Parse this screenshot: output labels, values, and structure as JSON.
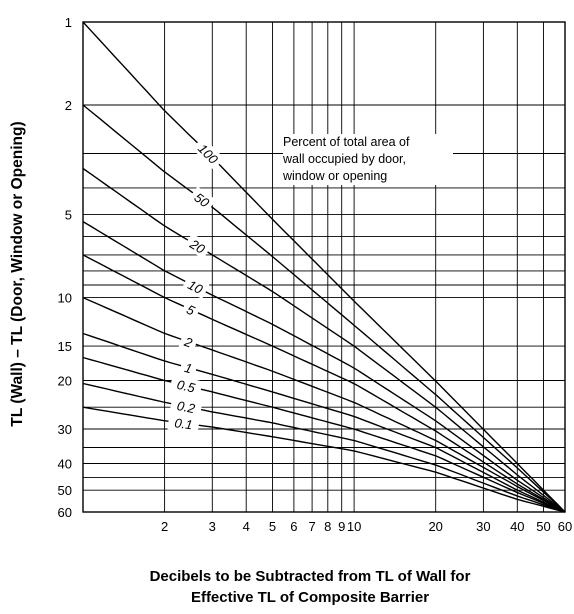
{
  "chart_data": {
    "type": "line",
    "x_scale": "log",
    "y_scale": "log",
    "y_inverted": true,
    "xlim": [
      1,
      60
    ],
    "ylim": [
      1,
      60
    ],
    "grid": true,
    "xlabel_lines": [
      "Decibels to be Subtracted from TL of Wall for",
      "Effective TL of Composite Barrier"
    ],
    "ylabel": "TL (Wall) – TL (Door, Window or Opening)",
    "x_ticks": [
      2,
      3,
      4,
      5,
      6,
      7,
      8,
      9,
      10,
      20,
      30,
      40,
      50,
      60
    ],
    "x_tick_labels": [
      "2",
      "3",
      "4",
      "5",
      "6",
      "7",
      "8",
      "9",
      "10",
      "20",
      "30",
      "40",
      "50",
      "60"
    ],
    "y_ticks": [
      1,
      2,
      5,
      10,
      15,
      20,
      30,
      40,
      50,
      60
    ],
    "y_tick_labels": [
      "1",
      "2",
      "5",
      "10",
      "15",
      "20",
      "30",
      "40",
      "50",
      "60"
    ],
    "annotation_lines": [
      "Percent of total area of",
      "wall occupied by door,",
      "window or opening"
    ],
    "series": [
      {
        "name": "100",
        "points": [
          [
            1,
            1
          ],
          [
            2,
            2.1
          ],
          [
            3,
            3.1
          ],
          [
            5,
            5.2
          ],
          [
            10,
            10.3
          ],
          [
            20,
            20.1
          ],
          [
            40,
            40
          ],
          [
            60,
            60
          ]
        ]
      },
      {
        "name": "50",
        "points": [
          [
            1,
            2
          ],
          [
            2,
            3.5
          ],
          [
            3,
            4.7
          ],
          [
            5,
            7.1
          ],
          [
            10,
            12.6
          ],
          [
            20,
            22.5
          ],
          [
            40,
            41.5
          ],
          [
            60,
            60
          ]
        ]
      },
      {
        "name": "20",
        "points": [
          [
            1,
            3.4
          ],
          [
            2,
            5.5
          ],
          [
            3,
            7.0
          ],
          [
            5,
            9.5
          ],
          [
            10,
            15.0
          ],
          [
            20,
            25.0
          ],
          [
            40,
            44.0
          ],
          [
            60,
            60
          ]
        ]
      },
      {
        "name": "10",
        "points": [
          [
            1,
            5.3
          ],
          [
            2,
            8.0
          ],
          [
            3,
            9.8
          ],
          [
            5,
            12.5
          ],
          [
            10,
            18.0
          ],
          [
            20,
            28.0
          ],
          [
            40,
            46.0
          ],
          [
            60,
            60
          ]
        ]
      },
      {
        "name": "5",
        "points": [
          [
            1,
            7.0
          ],
          [
            2,
            10.0
          ],
          [
            3,
            12.0
          ],
          [
            5,
            15.0
          ],
          [
            10,
            20.5
          ],
          [
            20,
            30.5
          ],
          [
            40,
            47.5
          ],
          [
            60,
            60
          ]
        ]
      },
      {
        "name": "2",
        "points": [
          [
            1,
            10.0
          ],
          [
            2,
            13.5
          ],
          [
            3,
            15.5
          ],
          [
            5,
            18.5
          ],
          [
            10,
            24.0
          ],
          [
            20,
            33.0
          ],
          [
            40,
            48.5
          ],
          [
            60,
            60
          ]
        ]
      },
      {
        "name": "1",
        "points": [
          [
            1,
            13.5
          ],
          [
            2,
            17.0
          ],
          [
            3,
            19.0
          ],
          [
            5,
            22.0
          ],
          [
            10,
            27.0
          ],
          [
            20,
            35.0
          ],
          [
            40,
            50.0
          ],
          [
            60,
            60
          ]
        ]
      },
      {
        "name": "0.5",
        "points": [
          [
            1,
            16.5
          ],
          [
            2,
            20.0
          ],
          [
            3,
            22.0
          ],
          [
            5,
            25.0
          ],
          [
            10,
            30.0
          ],
          [
            20,
            37.5
          ],
          [
            40,
            51.0
          ],
          [
            60,
            60
          ]
        ]
      },
      {
        "name": "0.2",
        "points": [
          [
            1,
            20.5
          ],
          [
            2,
            24.0
          ],
          [
            3,
            26.0
          ],
          [
            5,
            28.5
          ],
          [
            10,
            33.0
          ],
          [
            20,
            40.5
          ],
          [
            40,
            52.5
          ],
          [
            60,
            60
          ]
        ]
      },
      {
        "name": "0.1",
        "points": [
          [
            1,
            25.0
          ],
          [
            2,
            28.0
          ],
          [
            3,
            29.5
          ],
          [
            5,
            32.0
          ],
          [
            10,
            36.0
          ],
          [
            20,
            43.0
          ],
          [
            40,
            54.0
          ],
          [
            60,
            60
          ]
        ]
      }
    ],
    "series_label_positions_x": [
      2.9,
      2.75,
      2.65,
      2.6,
      2.5,
      2.45,
      2.45,
      2.4,
      2.4,
      2.35
    ]
  }
}
